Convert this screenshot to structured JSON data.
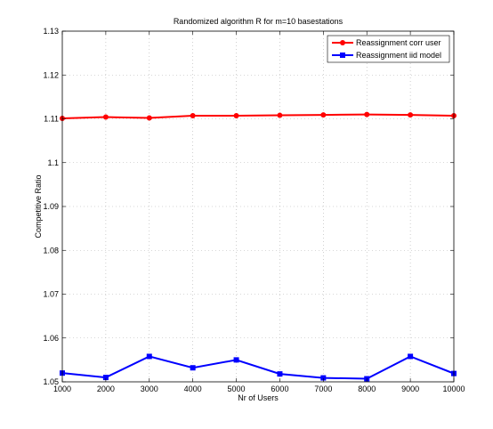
{
  "chart_data": {
    "type": "line",
    "title": "Randomized algorithm R for m=10 basestations",
    "xlabel": "Nr of Users",
    "ylabel": "Competitive Ratio",
    "x": [
      1000,
      2000,
      3000,
      4000,
      5000,
      6000,
      7000,
      8000,
      9000,
      10000
    ],
    "xlim": [
      1000,
      10000
    ],
    "ylim": [
      1.05,
      1.13
    ],
    "xticks": [
      "1000",
      "2000",
      "3000",
      "4000",
      "5000",
      "6000",
      "7000",
      "8000",
      "9000",
      "10000"
    ],
    "yticks": [
      "1.05",
      "1.06",
      "1.07",
      "1.08",
      "1.09",
      "1.1",
      "1.11",
      "1.12",
      "1.13"
    ],
    "ytick_values": [
      1.05,
      1.06,
      1.07,
      1.08,
      1.09,
      1.1,
      1.11,
      1.12,
      1.13
    ],
    "grid": true,
    "legend_position": "top-right",
    "series": [
      {
        "name": "Reassignment corr user",
        "color": "#ff0000",
        "marker": "circle",
        "values": [
          1.1101,
          1.1104,
          1.1102,
          1.1107,
          1.1107,
          1.1108,
          1.1109,
          1.111,
          1.1109,
          1.1107
        ]
      },
      {
        "name": "Reassignment iid model",
        "color": "#0000ff",
        "marker": "square",
        "values": [
          1.052,
          1.051,
          1.0558,
          1.0532,
          1.055,
          1.0518,
          1.0509,
          1.0507,
          1.0558,
          1.0519
        ]
      }
    ]
  }
}
